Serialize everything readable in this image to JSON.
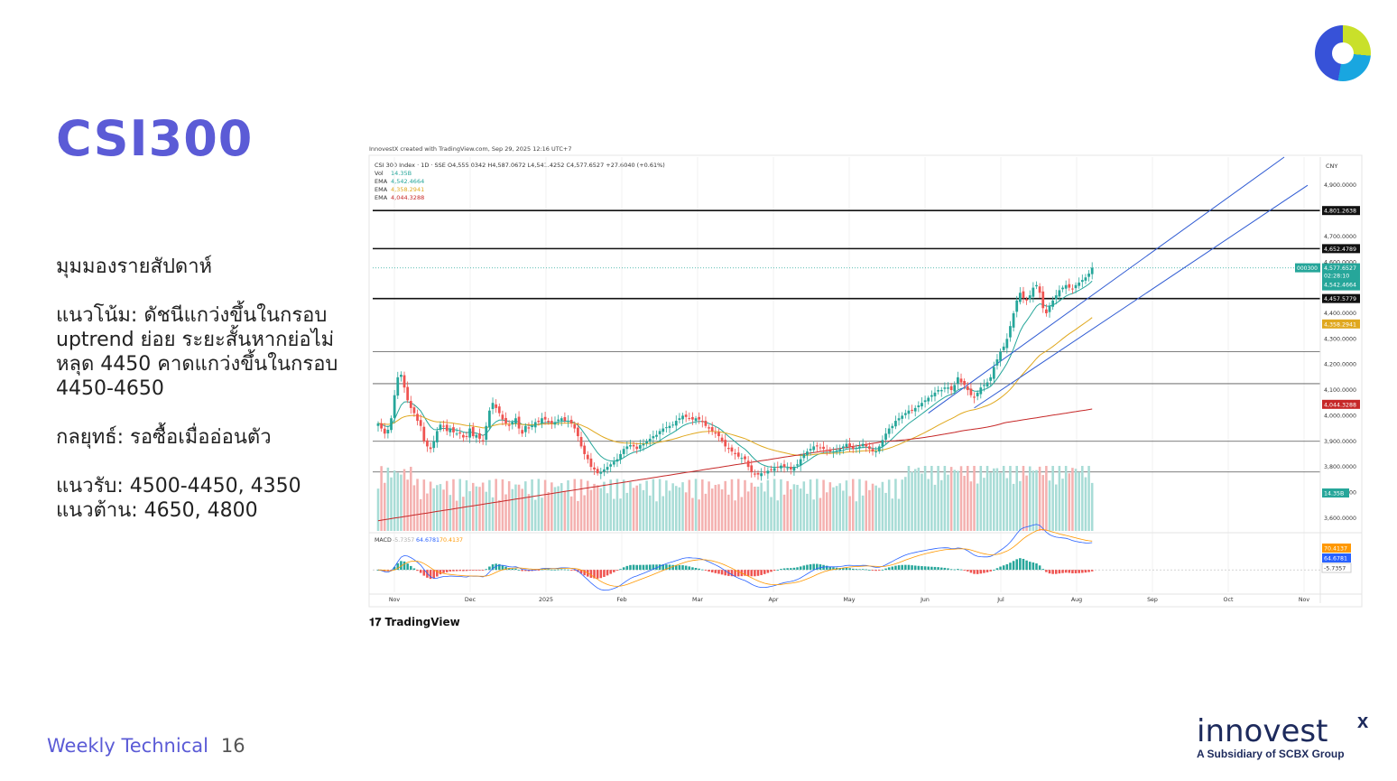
{
  "slide": {
    "title": "CSI300",
    "section_title": "มุมมองรายสัปดาห์",
    "trend_label": "แนวโน้ม: ดัชนีแกว่งขึ้นในกรอบ uptrend ย่อย ระยะสั้นหากย่อไม่หลุด 4450 คาดแกว่งขึ้นในกรอบ 4450-4650",
    "strategy_label": "กลยุทธ์: รอซื้อเมื่ออ่อนตัว",
    "support_label": "แนวรับ: 4500-4450, 4350",
    "resistance_label": "แนวต้าน: 4650, 4800",
    "footer": "Weekly Technical",
    "page_number": "16",
    "brand_name": "innovest",
    "brand_x": "x",
    "brand_sub": "A Subsidiary of SCBX Group",
    "tradingview_logo": "TradingView"
  },
  "colors": {
    "accent": "#5b5bd6",
    "up": "#26a69a",
    "down": "#ef5350",
    "ema_fast": "#26a69a",
    "ema_mid": "#e0a81e",
    "ema_slow": "#c62828",
    "channel": "#2f5bd3",
    "macd_line": "#2962ff",
    "signal_line": "#ff9800"
  },
  "chart_data": {
    "type": "candlestick",
    "header": "InnovestX created with TradingView.com, Sep 29, 2025 12:16 UTC+7",
    "ohlc_label": "CSI 300 Index · 1D · SSE  O4,555.0342  H4,587.0672  L4,541.4252  C4,577.6527  +27.6040 (+0.61%)",
    "vol_label": "Vol",
    "vol_value": "14.35B",
    "ema_labels": [
      {
        "name": "EMA",
        "value": "4,542.4664",
        "color": "#26a69a"
      },
      {
        "name": "EMA",
        "value": "4,358.2941",
        "color": "#e0a81e"
      },
      {
        "name": "EMA",
        "value": "4,044.3288",
        "color": "#c62828"
      }
    ],
    "currency": "CNY",
    "x_ticks": [
      "Nov",
      "Dec",
      "2025",
      "Feb",
      "Mar",
      "Apr",
      "May",
      "Jun",
      "Jul",
      "Aug",
      "Sep",
      "Oct",
      "Nov"
    ],
    "y_ticks": [
      "4,900.0000",
      "4,700.0000",
      "4,600.0000",
      "4,400.0000",
      "4,300.0000",
      "4,200.0000",
      "4,100.0000",
      "4,000.0000",
      "3,900.0000",
      "3,800.0000",
      "3,700.0000",
      "3,600.0000"
    ],
    "y_tick_values": [
      4900,
      4700,
      4600,
      4400,
      4300,
      4200,
      4100,
      4000,
      3900,
      3800,
      3700,
      3600
    ],
    "ylim": [
      3550,
      5010
    ],
    "horizontal_levels": [
      {
        "value": 4801.2638,
        "label": "4,801.2638"
      },
      {
        "value": 4652.4789,
        "label": "4,652.4789"
      },
      {
        "value": 4457.5779,
        "label": "4,457.5779"
      }
    ],
    "thin_levels": [
      4250,
      4125,
      3900,
      3780
    ],
    "price_badges": [
      {
        "label": "000300",
        "value": 4577.6527,
        "text": "4,577.6527",
        "color": "#26a69a"
      },
      {
        "label": "",
        "value": 4542.4664,
        "text": "4,542.4664",
        "color": "#26a69a"
      },
      {
        "label": "",
        "value": 4358.2941,
        "text": "4,358.2941",
        "color": "#e0a81e"
      },
      {
        "label": "",
        "value": 4044.3288,
        "text": "4,044.3288",
        "color": "#c62828"
      }
    ],
    "countdown": "02:28:10",
    "vol_badge": "14.35B",
    "macd_label": "MACD",
    "macd_values": [
      "-5.7357",
      "64.6781",
      "70.4137"
    ],
    "macd_badges": [
      {
        "text": "70.4137",
        "color": "#ff9800"
      },
      {
        "text": "64.6781",
        "color": "#2962ff"
      },
      {
        "text": "-5.7357",
        "color": "#ffffff"
      }
    ],
    "closes": [
      3970,
      3950,
      3930,
      3945,
      3990,
      4080,
      4150,
      4160,
      4110,
      4060,
      4030,
      4010,
      3980,
      3960,
      3900,
      3880,
      3870,
      3900,
      3940,
      3965,
      3960,
      3940,
      3950,
      3935,
      3930,
      3930,
      3915,
      3920,
      3950,
      3920,
      3925,
      3910,
      3900,
      3960,
      4020,
      4050,
      4030,
      4010,
      3985,
      3970,
      3960,
      3975,
      3990,
      3950,
      3930,
      3960,
      3950,
      3960,
      3975,
      3975,
      3990,
      3985,
      3975,
      3970,
      3975,
      3985,
      3990,
      3980,
      3980,
      3970,
      3950,
      3920,
      3880,
      3850,
      3830,
      3800,
      3790,
      3775,
      3780,
      3790,
      3800,
      3810,
      3820,
      3830,
      3850,
      3870,
      3880,
      3885,
      3880,
      3870,
      3885,
      3890,
      3900,
      3910,
      3920,
      3925,
      3940,
      3950,
      3955,
      3960,
      3965,
      3980,
      3990,
      4000,
      3995,
      3990,
      3985,
      3990,
      3985,
      3975,
      3960,
      3950,
      3940,
      3930,
      3920,
      3900,
      3880,
      3870,
      3860,
      3850,
      3840,
      3835,
      3830,
      3800,
      3780,
      3770,
      3770,
      3775,
      3780,
      3785,
      3790,
      3795,
      3800,
      3805,
      3800,
      3795,
      3790,
      3800,
      3810,
      3830,
      3850,
      3860,
      3870,
      3880,
      3880,
      3875,
      3870,
      3865,
      3860,
      3860,
      3865,
      3870,
      3880,
      3890,
      3880,
      3870,
      3875,
      3880,
      3890,
      3880,
      3870,
      3860,
      3860,
      3880,
      3905,
      3930,
      3950,
      3960,
      3980,
      3990,
      4000,
      4010,
      4020,
      4020,
      4030,
      4040,
      4050,
      4060,
      4070,
      4080,
      4090,
      4100,
      4100,
      4110,
      4110,
      4100,
      4120,
      4150,
      4130,
      4120,
      4100,
      4080,
      4070,
      4090,
      4110,
      4120,
      4130,
      4150,
      4190,
      4220,
      4250,
      4270,
      4300,
      4350,
      4400,
      4450,
      4480,
      4460,
      4450,
      4470,
      4500,
      4510,
      4480,
      4420,
      4400,
      4430,
      4450,
      4470,
      4490,
      4500,
      4510,
      4500,
      4495,
      4510,
      4520,
      4530,
      4540,
      4555,
      4578
    ],
    "vol_range_label": "Vol",
    "macd_range": [
      -60,
      80
    ]
  }
}
